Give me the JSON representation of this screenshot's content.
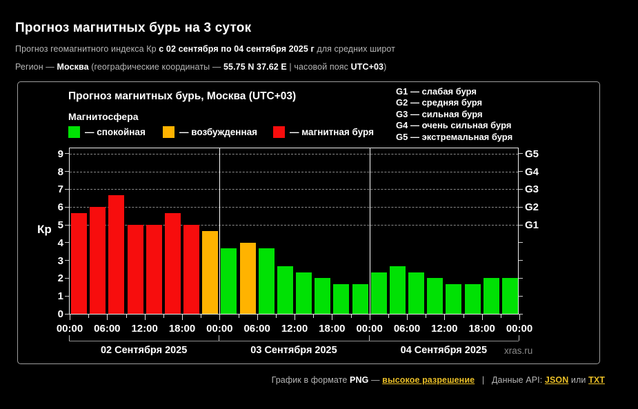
{
  "header": {
    "title": "Прогноз магнитных бурь на 3 суток",
    "sub1": {
      "p0": "Прогноз геомагнитного индекса Кр ",
      "p1": "с 02 сентября по 04 сентября 2025 г",
      "p2": " для средних широт"
    },
    "sub2": {
      "p0": "Регион — ",
      "p1": "Москва",
      "p2": " (географические координаты — ",
      "p3": "55.75 N 37.62 E",
      "p4": " | часовой пояс ",
      "p5": "UTC+03",
      "p6": ")"
    }
  },
  "chart": {
    "title": "Прогноз магнитных бурь, Москва (UTC+03)",
    "legend_title": "Магнитосфера",
    "legend": [
      {
        "state": "calm",
        "color": "#00e104",
        "label": "— спокойная"
      },
      {
        "state": "excited",
        "color": "#ffb300",
        "label": "— возбужденная"
      },
      {
        "state": "storm",
        "color": "#f70d0d",
        "label": "— магнитная буря"
      }
    ],
    "g_legend": [
      "G1 — слабая буря",
      "G2 — средняя буря",
      "G3 — сильная буря",
      "G4 — очень сильная буря",
      "G5 — экстремальная буря"
    ],
    "watermark": "xras.ru"
  },
  "chart_data": {
    "type": "bar",
    "title": "Прогноз магнитных бурь, Москва (UTC+03)",
    "ylabel": "Кр",
    "ylim": [
      0,
      9.4
    ],
    "yticks": [
      0,
      1,
      2,
      3,
      4,
      5,
      6,
      7,
      8,
      9
    ],
    "grid_levels": [
      5,
      6,
      7,
      8,
      9
    ],
    "right_ticks": [
      {
        "label": "G1",
        "level": 5
      },
      {
        "label": "G2",
        "level": 6
      },
      {
        "label": "G3",
        "level": 7
      },
      {
        "label": "G4",
        "level": 8
      },
      {
        "label": "G5",
        "level": 9
      }
    ],
    "time_labels": [
      "00:00",
      "06:00",
      "12:00",
      "18:00",
      "00:00",
      "06:00",
      "12:00",
      "18:00",
      "00:00",
      "06:00",
      "12:00",
      "18:00",
      "00:00"
    ],
    "hours_per_bar": 3,
    "state_colors": {
      "calm": "#00e104",
      "excited": "#ffb300",
      "storm": "#f70d0d"
    },
    "days": [
      {
        "date": "02 Сентября 2025",
        "values": [
          5.67,
          6.0,
          6.67,
          5.0,
          5.0,
          5.67,
          5.0,
          4.67
        ],
        "states": [
          "storm",
          "storm",
          "storm",
          "storm",
          "storm",
          "storm",
          "storm",
          "excited"
        ]
      },
      {
        "date": "03 Сентября 2025",
        "values": [
          3.67,
          4.0,
          3.67,
          2.67,
          2.33,
          2.0,
          1.67,
          1.67
        ],
        "states": [
          "calm",
          "excited",
          "calm",
          "calm",
          "calm",
          "calm",
          "calm",
          "calm"
        ]
      },
      {
        "date": "04 Сентября 2025",
        "values": [
          2.33,
          2.67,
          2.33,
          2.0,
          1.67,
          1.67,
          2.0,
          2.0
        ],
        "states": [
          "calm",
          "calm",
          "calm",
          "calm",
          "calm",
          "calm",
          "calm",
          "calm"
        ]
      }
    ]
  },
  "footer": {
    "p0": "График в формате ",
    "p1": "PNG",
    "p2": " — ",
    "link_hires": "высокое разрешение",
    "p3": "   |   ",
    "p4": "Данные API: ",
    "link_json": "JSON",
    "p5": " или ",
    "link_txt": "TXT"
  }
}
